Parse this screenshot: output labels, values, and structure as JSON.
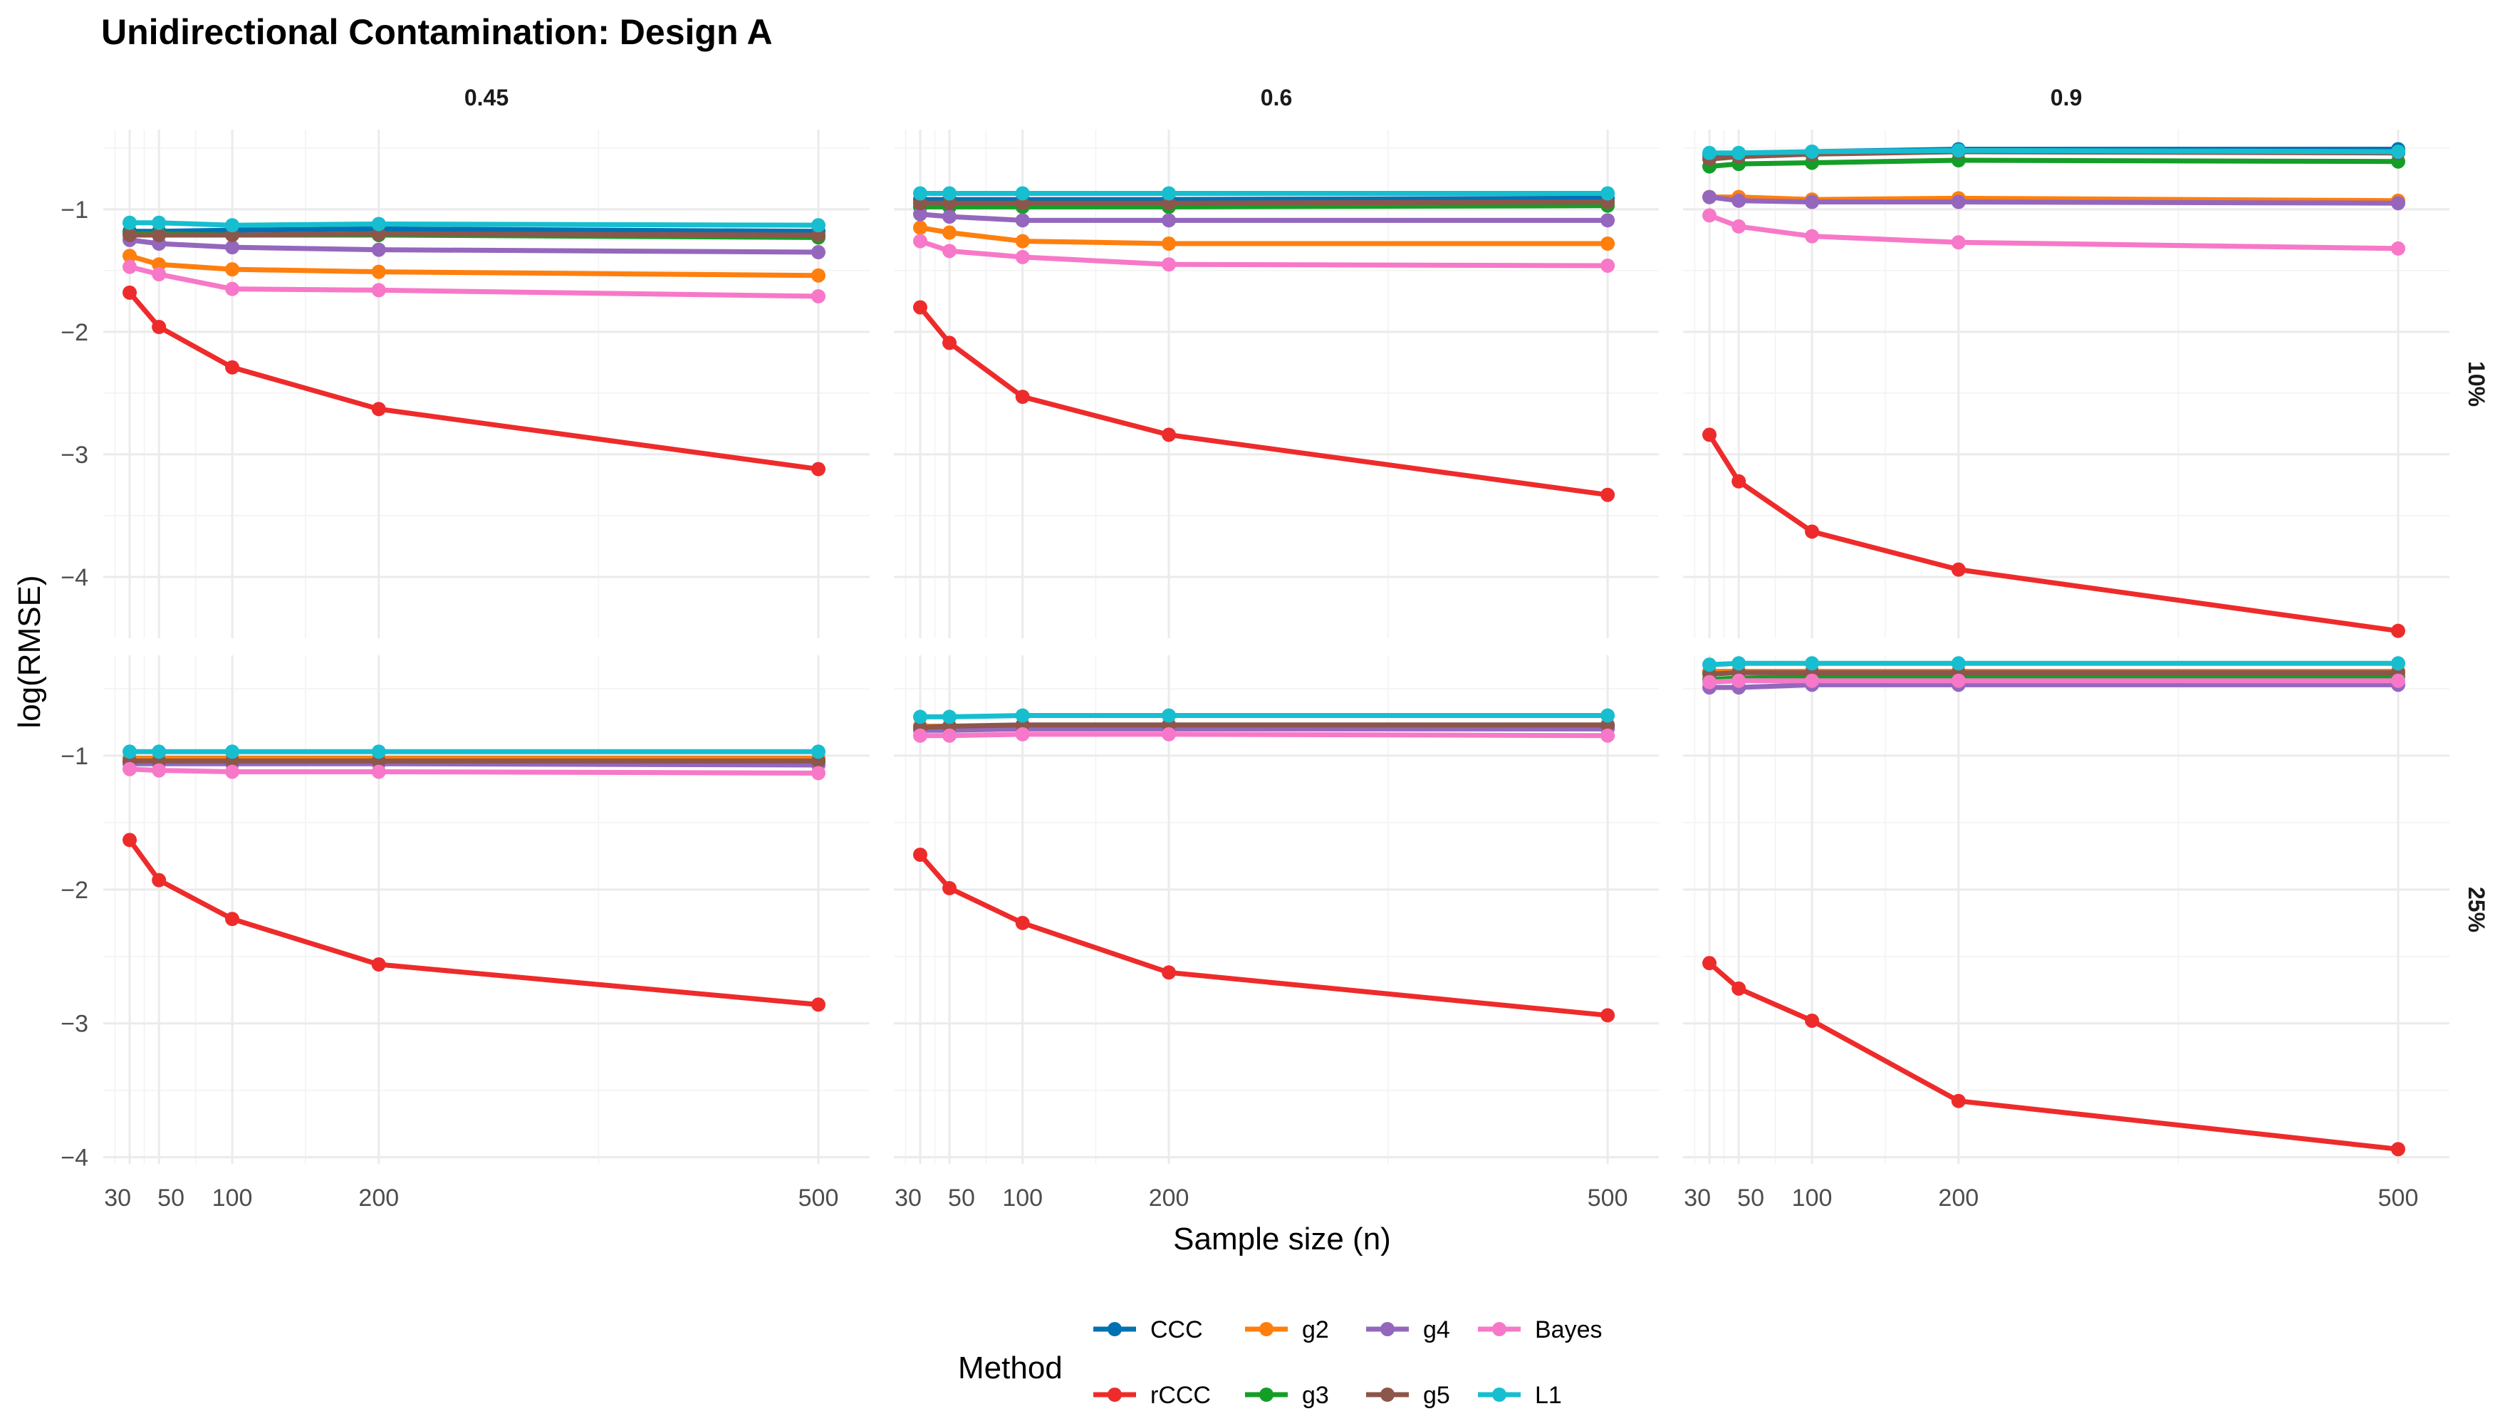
{
  "chart_data": {
    "type": "line",
    "title": "Unidirectional Contamination: Design A",
    "xlabel": "Sample size (n)",
    "ylabel": "log(RMSE)",
    "x": [
      30,
      50,
      100,
      200,
      500
    ],
    "x_ticks": [
      30,
      50,
      100,
      200,
      500
    ],
    "x_tick_labels": [
      "30",
      "50",
      "100",
      "200",
      "500"
    ],
    "xlim": [
      12,
      535
    ],
    "rows": [
      {
        "label": "10%",
        "ylim": [
          -4.5,
          -0.35
        ],
        "y_ticks": [
          -1,
          -2,
          -3,
          -4
        ],
        "y_tick_labels": [
          "−1",
          "−2",
          "−3",
          "−4"
        ]
      },
      {
        "label": "25%",
        "ylim": [
          -4.05,
          -0.25
        ],
        "y_ticks": [
          -1,
          -2,
          -3,
          -4
        ],
        "y_tick_labels": [
          "−1",
          "−2",
          "−3",
          "−4"
        ]
      }
    ],
    "columns": [
      "0.45",
      "0.6",
      "0.9"
    ],
    "legend": {
      "title": "Method",
      "position": "bottom",
      "entries": [
        "CCC",
        "g2",
        "g4",
        "Bayes",
        "rCCC",
        "g3",
        "g5",
        "L1"
      ]
    },
    "series_colors": {
      "CCC": "#0072B2",
      "rCCC": "#EE2B2B",
      "g2": "#FF7F0E",
      "g3": "#159E27",
      "g4": "#9467BD",
      "g5": "#8C564B",
      "Bayes": "#F778C8",
      "L1": "#17BECF"
    },
    "panels": [
      {
        "row": "10%",
        "col": "0.45",
        "series": [
          {
            "name": "CCC",
            "values": [
              -1.18,
              -1.18,
              -1.17,
              -1.16,
              -1.18
            ]
          },
          {
            "name": "rCCC",
            "values": [
              -1.68,
              -1.96,
              -2.29,
              -2.63,
              -3.12
            ]
          },
          {
            "name": "g2",
            "values": [
              -1.38,
              -1.45,
              -1.49,
              -1.51,
              -1.54
            ]
          },
          {
            "name": "g3",
            "values": [
              -1.2,
              -1.2,
              -1.21,
              -1.21,
              -1.23
            ]
          },
          {
            "name": "g4",
            "values": [
              -1.25,
              -1.28,
              -1.31,
              -1.33,
              -1.35
            ]
          },
          {
            "name": "g5",
            "values": [
              -1.21,
              -1.21,
              -1.21,
              -1.2,
              -1.21
            ]
          },
          {
            "name": "Bayes",
            "values": [
              -1.47,
              -1.53,
              -1.65,
              -1.66,
              -1.71
            ]
          },
          {
            "name": "L1",
            "values": [
              -1.11,
              -1.11,
              -1.13,
              -1.12,
              -1.13
            ]
          }
        ]
      },
      {
        "row": "10%",
        "col": "0.6",
        "series": [
          {
            "name": "CCC",
            "values": [
              -0.92,
              -0.92,
              -0.92,
              -0.92,
              -0.91
            ]
          },
          {
            "name": "rCCC",
            "values": [
              -1.8,
              -2.09,
              -2.53,
              -2.84,
              -3.33
            ]
          },
          {
            "name": "g2",
            "values": [
              -1.15,
              -1.19,
              -1.26,
              -1.28,
              -1.28
            ]
          },
          {
            "name": "g3",
            "values": [
              -0.98,
              -0.98,
              -0.98,
              -0.98,
              -0.97
            ]
          },
          {
            "name": "g4",
            "values": [
              -1.04,
              -1.06,
              -1.09,
              -1.09,
              -1.09
            ]
          },
          {
            "name": "g5",
            "values": [
              -0.95,
              -0.95,
              -0.95,
              -0.95,
              -0.94
            ]
          },
          {
            "name": "Bayes",
            "values": [
              -1.26,
              -1.34,
              -1.39,
              -1.45,
              -1.46
            ]
          },
          {
            "name": "L1",
            "values": [
              -0.87,
              -0.87,
              -0.87,
              -0.87,
              -0.87
            ]
          }
        ]
      },
      {
        "row": "10%",
        "col": "0.9",
        "series": [
          {
            "name": "CCC",
            "values": [
              -0.56,
              -0.55,
              -0.53,
              -0.51,
              -0.51
            ]
          },
          {
            "name": "rCCC",
            "values": [
              -2.84,
              -3.22,
              -3.63,
              -3.94,
              -4.44
            ]
          },
          {
            "name": "g2",
            "values": [
              -0.9,
              -0.9,
              -0.92,
              -0.91,
              -0.93
            ]
          },
          {
            "name": "g3",
            "values": [
              -0.65,
              -0.63,
              -0.62,
              -0.6,
              -0.61
            ]
          },
          {
            "name": "g4",
            "values": [
              -0.9,
              -0.93,
              -0.94,
              -0.94,
              -0.95
            ]
          },
          {
            "name": "g5",
            "values": [
              -0.59,
              -0.57,
              -0.55,
              -0.53,
              -0.54
            ]
          },
          {
            "name": "Bayes",
            "values": [
              -1.05,
              -1.14,
              -1.22,
              -1.27,
              -1.32
            ]
          },
          {
            "name": "L1",
            "values": [
              -0.54,
              -0.54,
              -0.53,
              -0.52,
              -0.53
            ]
          }
        ]
      },
      {
        "row": "25%",
        "col": "0.45",
        "series": [
          {
            "name": "CCC",
            "values": [
              -1.02,
              -1.02,
              -1.02,
              -1.02,
              -1.02
            ]
          },
          {
            "name": "rCCC",
            "values": [
              -1.63,
              -1.93,
              -2.22,
              -2.56,
              -2.86
            ]
          },
          {
            "name": "g2",
            "values": [
              -1.02,
              -1.02,
              -1.02,
              -1.02,
              -1.02
            ]
          },
          {
            "name": "g3",
            "values": [
              -1.05,
              -1.05,
              -1.05,
              -1.05,
              -1.05
            ]
          },
          {
            "name": "g4",
            "values": [
              -1.06,
              -1.06,
              -1.06,
              -1.06,
              -1.07
            ]
          },
          {
            "name": "g5",
            "values": [
              -1.04,
              -1.04,
              -1.04,
              -1.04,
              -1.04
            ]
          },
          {
            "name": "Bayes",
            "values": [
              -1.1,
              -1.11,
              -1.12,
              -1.12,
              -1.13
            ]
          },
          {
            "name": "L1",
            "values": [
              -0.97,
              -0.97,
              -0.97,
              -0.97,
              -0.97
            ]
          }
        ]
      },
      {
        "row": "25%",
        "col": "0.6",
        "series": [
          {
            "name": "CCC",
            "values": [
              -0.78,
              -0.78,
              -0.78,
              -0.78,
              -0.78
            ]
          },
          {
            "name": "rCCC",
            "values": [
              -1.74,
              -1.99,
              -2.25,
              -2.62,
              -2.94
            ]
          },
          {
            "name": "g2",
            "values": [
              -0.78,
              -0.78,
              -0.78,
              -0.78,
              -0.78
            ]
          },
          {
            "name": "g3",
            "values": [
              -0.8,
              -0.79,
              -0.79,
              -0.79,
              -0.79
            ]
          },
          {
            "name": "g4",
            "values": [
              -0.81,
              -0.81,
              -0.8,
              -0.8,
              -0.8
            ]
          },
          {
            "name": "g5",
            "values": [
              -0.79,
              -0.78,
              -0.77,
              -0.77,
              -0.77
            ]
          },
          {
            "name": "Bayes",
            "values": [
              -0.85,
              -0.85,
              -0.84,
              -0.84,
              -0.85
            ]
          },
          {
            "name": "L1",
            "values": [
              -0.71,
              -0.71,
              -0.7,
              -0.7,
              -0.7
            ]
          }
        ]
      },
      {
        "row": "25%",
        "col": "0.9",
        "series": [
          {
            "name": "CCC",
            "values": [
              -0.37,
              -0.37,
              -0.37,
              -0.37,
              -0.37
            ]
          },
          {
            "name": "rCCC",
            "values": [
              -2.55,
              -2.74,
              -2.98,
              -3.58,
              -3.94
            ]
          },
          {
            "name": "g2",
            "values": [
              -0.37,
              -0.37,
              -0.37,
              -0.37,
              -0.37
            ]
          },
          {
            "name": "g3",
            "values": [
              -0.43,
              -0.42,
              -0.41,
              -0.41,
              -0.41
            ]
          },
          {
            "name": "g4",
            "values": [
              -0.49,
              -0.49,
              -0.47,
              -0.47,
              -0.47
            ]
          },
          {
            "name": "g5",
            "values": [
              -0.39,
              -0.38,
              -0.38,
              -0.38,
              -0.38
            ]
          },
          {
            "name": "Bayes",
            "values": [
              -0.45,
              -0.44,
              -0.44,
              -0.44,
              -0.44
            ]
          },
          {
            "name": "L1",
            "values": [
              -0.32,
              -0.31,
              -0.31,
              -0.31,
              -0.31
            ]
          }
        ]
      }
    ]
  }
}
